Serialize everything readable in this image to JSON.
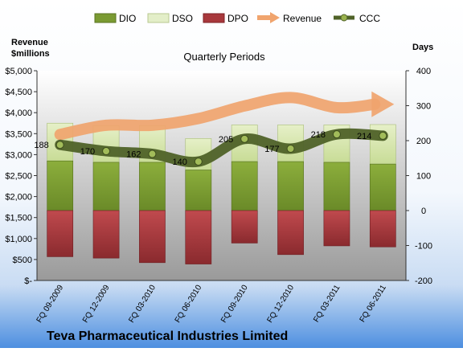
{
  "chart_data": {
    "type": "bar",
    "title": "Quarterly Periods",
    "footer_title": "Teva Pharmaceutical Industries Limited",
    "categories": [
      "FQ 09-2009",
      "FQ 12-2009",
      "FQ 03-2010",
      "FQ 06-2010",
      "FQ 09-2010",
      "FQ 12-2010",
      "FQ 03-2011",
      "FQ 06-2011"
    ],
    "left_axis": {
      "label_line1": "Revenue",
      "label_line2": "$millions",
      "min": 0,
      "max": 5000,
      "step": 500,
      "tick_labels": [
        "$-",
        "$500",
        "$1,000",
        "$1,500",
        "$2,000",
        "$2,500",
        "$3,000",
        "$3,500",
        "$4,000",
        "$4,500",
        "$5,000"
      ]
    },
    "right_axis": {
      "label": "Days",
      "min": -200,
      "max": 400,
      "step": 100,
      "tick_labels": [
        "-200",
        "-100",
        "0",
        "100",
        "200",
        "300",
        "400"
      ]
    },
    "series": [
      {
        "name": "DIO",
        "axis": "right",
        "kind": "stacked-bar",
        "values": [
          142,
          138,
          138,
          116,
          140,
          140,
          138,
          133
        ],
        "color": "#7a9a32"
      },
      {
        "name": "DSO",
        "axis": "right",
        "kind": "stacked-bar",
        "values": [
          108,
          105,
          105,
          90,
          105,
          105,
          107,
          113
        ],
        "color": "#d8e8b0"
      },
      {
        "name": "DPO",
        "axis": "right",
        "kind": "negative-bar",
        "values": [
          -132,
          -136,
          -149,
          -153,
          -93,
          -126,
          -101,
          -104
        ],
        "color": "#a8383c"
      },
      {
        "name": "Revenue",
        "axis": "left",
        "kind": "line",
        "values": [
          3480,
          3700,
          3700,
          3860,
          4160,
          4360,
          4120,
          4200
        ],
        "color": "#f0a46e"
      },
      {
        "name": "CCC",
        "axis": "right",
        "kind": "line",
        "values": [
          188,
          170,
          162,
          140,
          205,
          177,
          218,
          214
        ],
        "color": "#4f6228"
      }
    ],
    "ccc_labels": [
      "188",
      "170",
      "162",
      "140",
      "205",
      "177",
      "218",
      "214"
    ],
    "legend_position": "top",
    "grid": false
  }
}
